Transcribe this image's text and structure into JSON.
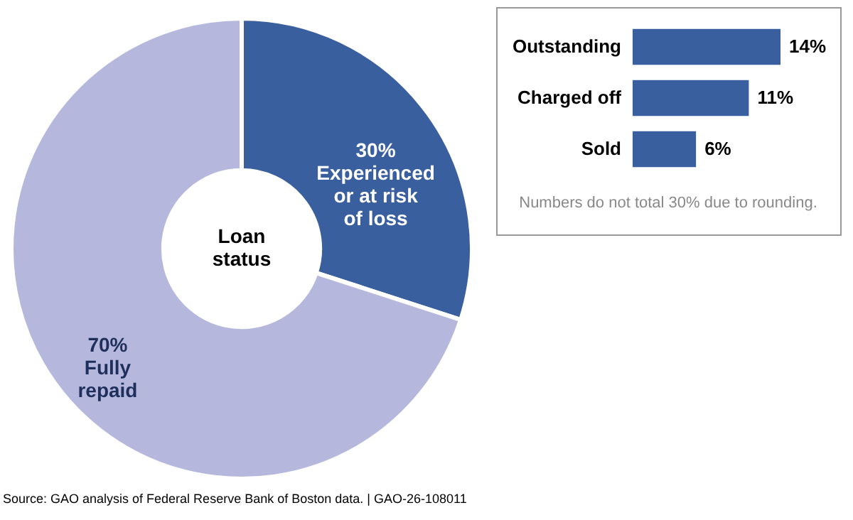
{
  "chart_data": [
    {
      "type": "donut",
      "title": "Loan status",
      "categories": [
        "Experienced or at risk of loss",
        "Fully repaid"
      ],
      "values": [
        30,
        70
      ],
      "value_labels": [
        "30%",
        "70%"
      ],
      "colors": [
        "#3a5f9f",
        "#b5b8dc"
      ],
      "legend": false,
      "annotations": [
        "Source: GAO analysis of Federal Reserve Bank of Boston data. | GAO-26-108011"
      ]
    },
    {
      "type": "bar",
      "orientation": "horizontal",
      "categories": [
        "Outstanding",
        "Charged off",
        "Sold"
      ],
      "values": [
        14,
        11,
        6
      ],
      "value_labels": [
        "14%",
        "11%",
        "6%"
      ],
      "color": "#3a5f9f",
      "annotations": [
        "Numbers do not total 30% due to rounding."
      ]
    }
  ]
}
